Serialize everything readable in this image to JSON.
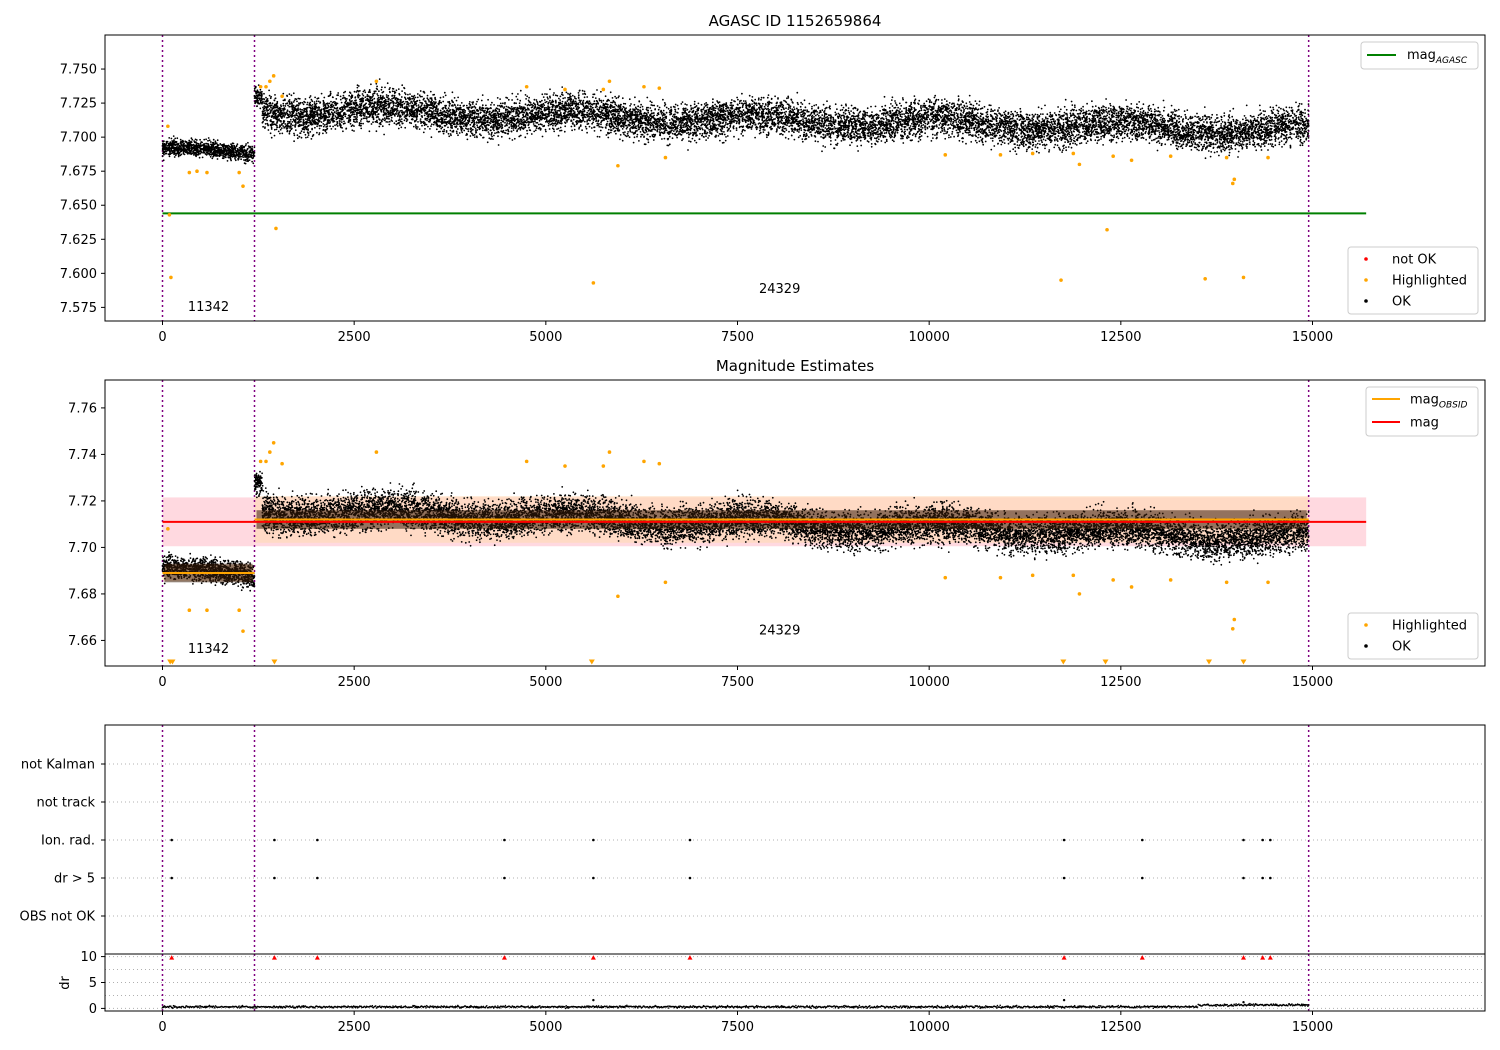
{
  "figure": {
    "x_tick_labels": [
      "0",
      "2500",
      "5000",
      "7500",
      "10000",
      "12500",
      "15000"
    ]
  },
  "colors": {
    "ok": "#000000",
    "highlighted": "#ffa500",
    "not_ok": "#ff0000",
    "mag_agasc": "#008000",
    "mag": "#ff0000",
    "mag_obsid": "#ffa500",
    "obsid_boundary": "#800080",
    "band_mag": "#ffc0cb",
    "band_obsid": "#ffdab9"
  },
  "chart_data": [
    {
      "type": "scatter",
      "title": "AGASC ID 1152659864",
      "xlim": [
        -750,
        17250
      ],
      "ylim": [
        7.565,
        7.775
      ],
      "x_ticks": [
        0,
        2500,
        5000,
        7500,
        10000,
        12500,
        15000
      ],
      "y_ticks": [
        7.575,
        7.6,
        7.625,
        7.65,
        7.675,
        7.7,
        7.725,
        7.75
      ],
      "y_tick_labels": [
        "7.575",
        "7.600",
        "7.625",
        "7.650",
        "7.675",
        "7.700",
        "7.725",
        "7.750"
      ],
      "grid": false,
      "obsid_boundaries": [
        0,
        1200,
        14950
      ],
      "obsid_labels": [
        {
          "text": "11342",
          "x": 600,
          "y": 7.5725
        },
        {
          "text": "24329",
          "x": 8050,
          "y": 7.5855
        }
      ],
      "lines": [
        {
          "name": "mag_AGASC",
          "y": 7.644,
          "x_range": [
            0,
            15700
          ]
        }
      ],
      "ok_segments": [
        {
          "x_start": 0,
          "x_end": 1200,
          "trend": [
            7.692,
            7.687
          ],
          "scatter": 0.005
        },
        {
          "x_start": 1200,
          "x_end": 1300,
          "trend": [
            7.73,
            7.73
          ],
          "scatter": 0.006
        },
        {
          "x_start": 1300,
          "x_end": 14950,
          "trend": [
            7.72,
            7.705
          ],
          "scatter": 0.011
        }
      ],
      "highlighted_points": [
        [
          70,
          7.708
        ],
        [
          110,
          7.597
        ],
        [
          90,
          7.643
        ],
        [
          350,
          7.674
        ],
        [
          450,
          7.675
        ],
        [
          580,
          7.674
        ],
        [
          1000,
          7.674
        ],
        [
          1050,
          7.664
        ],
        [
          1280,
          7.737
        ],
        [
          1350,
          7.737
        ],
        [
          1400,
          7.741
        ],
        [
          1450,
          7.745
        ],
        [
          1480,
          7.633
        ],
        [
          1560,
          7.73
        ],
        [
          2790,
          7.741
        ],
        [
          4750,
          7.737
        ],
        [
          5250,
          7.735
        ],
        [
          5620,
          7.593
        ],
        [
          5750,
          7.735
        ],
        [
          5830,
          7.741
        ],
        [
          5940,
          7.679
        ],
        [
          6280,
          7.737
        ],
        [
          6480,
          7.736
        ],
        [
          6560,
          7.685
        ],
        [
          10210,
          7.687
        ],
        [
          10930,
          7.687
        ],
        [
          11350,
          7.688
        ],
        [
          11720,
          7.595
        ],
        [
          11880,
          7.688
        ],
        [
          11960,
          7.68
        ],
        [
          12320,
          7.632
        ],
        [
          12400,
          7.686
        ],
        [
          12640,
          7.683
        ],
        [
          13150,
          7.686
        ],
        [
          13600,
          7.596
        ],
        [
          13880,
          7.685
        ],
        [
          13960,
          7.666
        ],
        [
          13980,
          7.669
        ],
        [
          14100,
          7.597
        ],
        [
          14420,
          7.685
        ]
      ],
      "not_ok_points": [],
      "legends": [
        {
          "position": "upper right",
          "items": [
            {
              "label": "mag",
              "sub": "AGASC"
            }
          ]
        },
        {
          "position": "lower right",
          "items": [
            {
              "label": "not OK"
            },
            {
              "label": "Highlighted"
            },
            {
              "label": "OK"
            }
          ]
        }
      ]
    },
    {
      "type": "scatter",
      "title": "Magnitude Estimates",
      "xlim": [
        -750,
        17250
      ],
      "ylim": [
        7.649,
        7.772
      ],
      "x_ticks": [
        0,
        2500,
        5000,
        7500,
        10000,
        12500,
        15000
      ],
      "y_ticks": [
        7.66,
        7.68,
        7.7,
        7.72,
        7.74,
        7.76
      ],
      "y_tick_labels": [
        "7.66",
        "7.68",
        "7.70",
        "7.72",
        "7.74",
        "7.76"
      ],
      "grid": false,
      "obsid_boundaries": [
        0,
        1200,
        14950
      ],
      "obsid_labels": [
        {
          "text": "11342",
          "x": 600,
          "y": 7.6545
        },
        {
          "text": "24329",
          "x": 8050,
          "y": 7.6625
        }
      ],
      "mag": {
        "value": 7.711,
        "band": [
          7.7005,
          7.7215
        ],
        "x_range": [
          0,
          15700
        ]
      },
      "mag_obsid": [
        {
          "x_range": [
            0,
            1200
          ],
          "value": 7.689,
          "band": [
            7.6855,
            7.6925
          ]
        },
        {
          "x_range": [
            1200,
            14950
          ],
          "value": 7.712,
          "band": [
            7.702,
            7.722
          ]
        }
      ],
      "ok_segments": [
        {
          "x_start": 0,
          "x_end": 1200,
          "trend": [
            7.691,
            7.687
          ],
          "scatter": 0.004
        },
        {
          "x_start": 1200,
          "x_end": 1300,
          "trend": [
            7.728,
            7.728
          ],
          "scatter": 0.004
        },
        {
          "x_start": 1300,
          "x_end": 14950,
          "trend": [
            7.716,
            7.704
          ],
          "scatter": 0.0065
        }
      ],
      "highlighted_points": [
        [
          70,
          7.708
        ],
        [
          350,
          7.673
        ],
        [
          580,
          7.673
        ],
        [
          1000,
          7.673
        ],
        [
          1050,
          7.664
        ],
        [
          1280,
          7.737
        ],
        [
          1350,
          7.737
        ],
        [
          1400,
          7.741
        ],
        [
          1450,
          7.745
        ],
        [
          1560,
          7.736
        ],
        [
          2790,
          7.741
        ],
        [
          4750,
          7.737
        ],
        [
          5250,
          7.735
        ],
        [
          5750,
          7.735
        ],
        [
          5830,
          7.741
        ],
        [
          5940,
          7.679
        ],
        [
          6280,
          7.737
        ],
        [
          6480,
          7.736
        ],
        [
          6560,
          7.685
        ],
        [
          10210,
          7.687
        ],
        [
          10930,
          7.687
        ],
        [
          11350,
          7.688
        ],
        [
          11880,
          7.688
        ],
        [
          11960,
          7.68
        ],
        [
          12400,
          7.686
        ],
        [
          12640,
          7.683
        ],
        [
          13150,
          7.686
        ],
        [
          13880,
          7.685
        ],
        [
          13960,
          7.665
        ],
        [
          13980,
          7.669
        ],
        [
          14420,
          7.685
        ]
      ],
      "out_of_range_markers": [
        [
          100,
          7.6505
        ],
        [
          130,
          7.6505
        ],
        [
          1460,
          7.6505
        ],
        [
          5600,
          7.6505
        ],
        [
          11750,
          7.6505
        ],
        [
          12300,
          7.6505
        ],
        [
          13650,
          7.6505
        ],
        [
          14100,
          7.6505
        ]
      ],
      "legends": [
        {
          "position": "upper right",
          "items": [
            {
              "label": "mag",
              "sub": "OBSID"
            },
            {
              "label": "mag"
            }
          ]
        },
        {
          "position": "lower right",
          "items": [
            {
              "label": "Highlighted"
            },
            {
              "label": "OK"
            }
          ]
        }
      ]
    },
    {
      "type": "scatter",
      "title": "",
      "xlim": [
        -750,
        17250
      ],
      "categories": [
        "OBS not OK",
        "dr > 5",
        "Ion. rad.",
        "not track",
        "not Kalman"
      ],
      "grid": "horizontal dotted",
      "obsid_boundaries": [
        0,
        1200,
        14950
      ],
      "flag_points": {
        "OBS not OK": [],
        "dr > 5": [
          120,
          1460,
          2020,
          4460,
          5620,
          6880,
          11760,
          12780,
          14100,
          14350,
          14450
        ],
        "Ion. rad.": [
          120,
          1460,
          2020,
          4460,
          5620,
          6880,
          11760,
          12780,
          14100,
          14350,
          14450
        ],
        "not track": [],
        "not Kalman": []
      }
    },
    {
      "type": "scatter",
      "title": "",
      "xlim": [
        -750,
        17250
      ],
      "ylim": [
        -0.5,
        10.5
      ],
      "x_ticks": [
        0,
        2500,
        5000,
        7500,
        10000,
        12500,
        15000
      ],
      "y_ticks": [
        0,
        5,
        10
      ],
      "y_tick_labels": [
        "0",
        "5",
        "10"
      ],
      "ylabel": "dr",
      "grid": "horizontal dotted",
      "obsid_boundaries": [
        0,
        1200,
        14950
      ],
      "dr_baseline": {
        "x_start": 0,
        "x_end": 14950,
        "mean": 0.3,
        "scatter": 0.18
      },
      "dr_bumps": [
        [
          5620,
          1.6
        ],
        [
          11760,
          1.6
        ],
        [
          14100,
          1.2
        ]
      ],
      "clipped_markers": [
        120,
        1460,
        2020,
        4460,
        5620,
        6880,
        11760,
        12780,
        14100,
        14350,
        14450
      ]
    }
  ]
}
